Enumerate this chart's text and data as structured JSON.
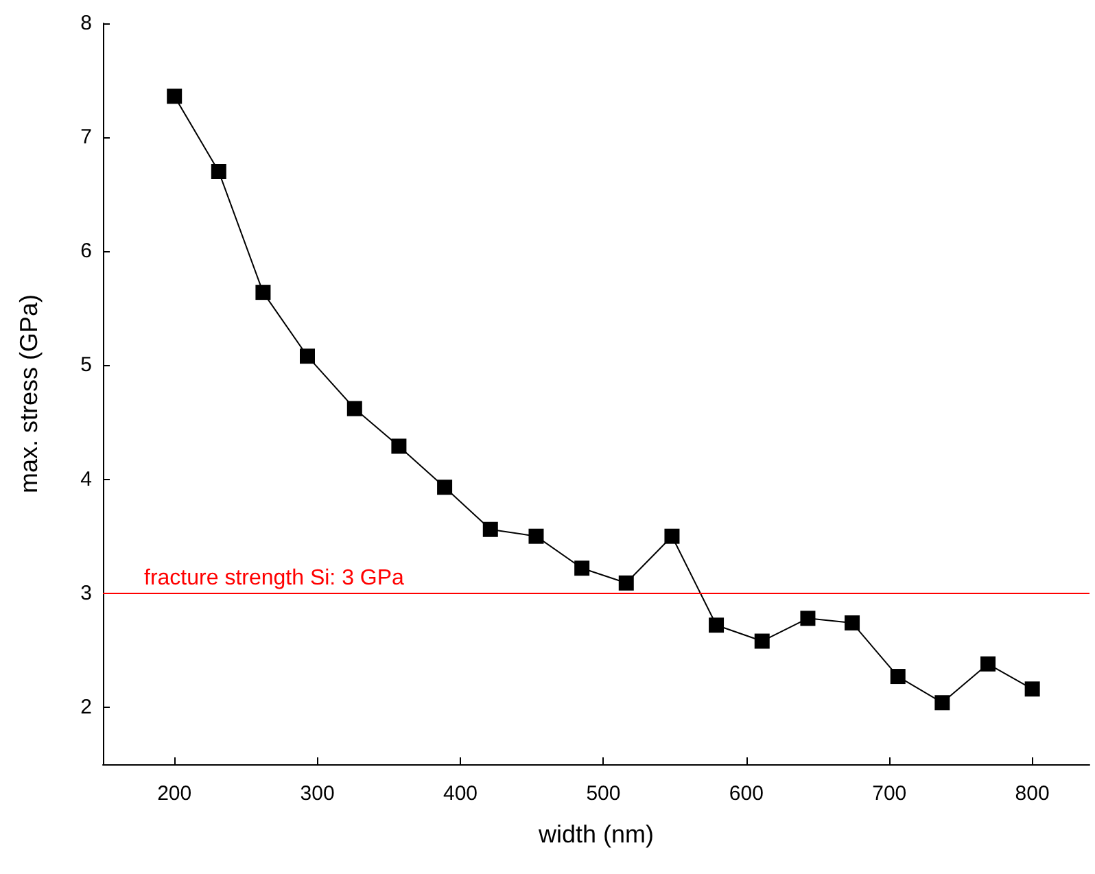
{
  "chart_data": {
    "type": "line",
    "xlabel": "width (nm)",
    "ylabel": "max. stress (GPa)",
    "x": [
      200,
      231,
      262,
      293,
      326,
      357,
      389,
      421,
      453,
      485,
      516,
      548,
      579,
      611,
      643,
      674,
      706,
      737,
      769,
      800
    ],
    "series": [
      {
        "color": "#000000",
        "values": [
          7.36,
          6.7,
          5.64,
          5.08,
          4.62,
          4.29,
          3.93,
          3.56,
          3.5,
          3.22,
          3.09,
          3.5,
          2.72,
          2.58,
          2.78,
          2.74,
          2.27,
          2.04,
          2.38,
          2.16
        ]
      }
    ],
    "xlim": [
      150,
      840
    ],
    "xticks": [
      200,
      300,
      400,
      500,
      600,
      700,
      800
    ],
    "ylim": [
      1.5,
      8
    ],
    "yticks": [
      2,
      3,
      4,
      5,
      6,
      7,
      8
    ],
    "ref_lines": [
      {
        "axis": "y",
        "value": 3,
        "label": "fracture strength Si: 3 GPa",
        "color": "#ff0000"
      }
    ],
    "grid": false,
    "marker": "square",
    "line_style": "solid"
  }
}
